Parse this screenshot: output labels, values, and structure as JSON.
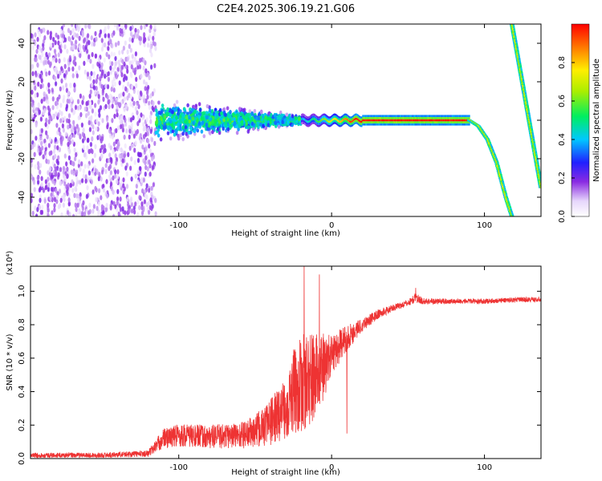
{
  "title": "C2E4.2025.306.19.21.G06",
  "chart_data": [
    {
      "type": "heatmap",
      "title": "C2E4.2025.306.19.21.G06",
      "xlabel": "Height of straight line (km)",
      "ylabel": "Frequency (Hz)",
      "xlim": [
        -197,
        137
      ],
      "ylim": [
        -50,
        50
      ],
      "xticks": [
        -100,
        0,
        100
      ],
      "xtick_labels": [
        "-100",
        "0",
        "100"
      ],
      "yticks": [
        -40,
        -20,
        0,
        20,
        40
      ],
      "ytick_labels": [
        "-40",
        "-20",
        "0",
        "20",
        "40"
      ],
      "colorbar": {
        "label": "Normalized spectral amplitude",
        "range": [
          0,
          1
        ],
        "ticks": [
          0.0,
          0.2,
          0.4,
          0.6,
          0.8
        ],
        "tick_labels": [
          "0.0",
          "0.2",
          "0.4",
          "0.6",
          "0.8"
        ]
      },
      "features": {
        "noise_region": {
          "x_range": [
            -197,
            -115
          ],
          "y_range": [
            -50,
            50
          ]
        },
        "scattered_band": {
          "x_range": [
            -115,
            -20
          ],
          "center_hz": 0,
          "half_width_hz": [
            12,
            3
          ]
        },
        "main_line": {
          "x_range": [
            -20,
            90
          ],
          "freq_hz": 0
        },
        "falling_branch": {
          "x": [
            90,
            96,
            102,
            108,
            114,
            118
          ],
          "freq_hz": [
            0,
            -3,
            -10,
            -22,
            -40,
            -50
          ]
        },
        "aliased_branch": {
          "x": [
            118,
            137
          ],
          "freq_hz": [
            50,
            -35
          ]
        }
      }
    },
    {
      "type": "line",
      "xlabel": "Height of straight line (km)",
      "ylabel": "SNR (10 * v/v)",
      "y_multiplier": "(x10⁴)",
      "xlim": [
        -197,
        137
      ],
      "ylim": [
        0,
        1.15
      ],
      "xticks": [
        -100,
        0,
        100
      ],
      "xtick_labels": [
        "-100",
        "0",
        "100"
      ],
      "yticks": [
        0.0,
        0.2,
        0.4,
        0.6,
        0.8,
        1.0
      ],
      "ytick_labels": [
        "0.0",
        "0.2",
        "0.4",
        "0.6",
        "0.8",
        "1.0"
      ],
      "series": [
        {
          "name": "SNR",
          "color": "#ee3333",
          "envelope": {
            "x": [
              -197,
              -150,
              -120,
              -110,
              -100,
              -80,
              -60,
              -50,
              -40,
              -30,
              -25,
              -18,
              -12,
              -5,
              0,
              10,
              20,
              30,
              40,
              50,
              55,
              60,
              80,
              100,
              120,
              137
            ],
            "mean": [
              0.02,
              0.02,
              0.03,
              0.12,
              0.14,
              0.13,
              0.14,
              0.16,
              0.22,
              0.3,
              0.4,
              0.45,
              0.48,
              0.55,
              0.62,
              0.72,
              0.8,
              0.86,
              0.9,
              0.93,
              0.96,
              0.94,
              0.94,
              0.94,
              0.95,
              0.95
            ],
            "spread": [
              0.015,
              0.015,
              0.02,
              0.06,
              0.07,
              0.07,
              0.08,
              0.1,
              0.14,
              0.18,
              0.25,
              0.3,
              0.28,
              0.2,
              0.12,
              0.08,
              0.04,
              0.03,
              0.02,
              0.02,
              0.03,
              0.02,
              0.015,
              0.015,
              0.015,
              0.015
            ]
          },
          "spikes": [
            {
              "x": -18,
              "y": 1.15
            },
            {
              "x": -8,
              "y": 1.1
            },
            {
              "x": 10,
              "y": 0.15
            },
            {
              "x": 55,
              "y": 1.02
            }
          ]
        }
      ]
    }
  ]
}
